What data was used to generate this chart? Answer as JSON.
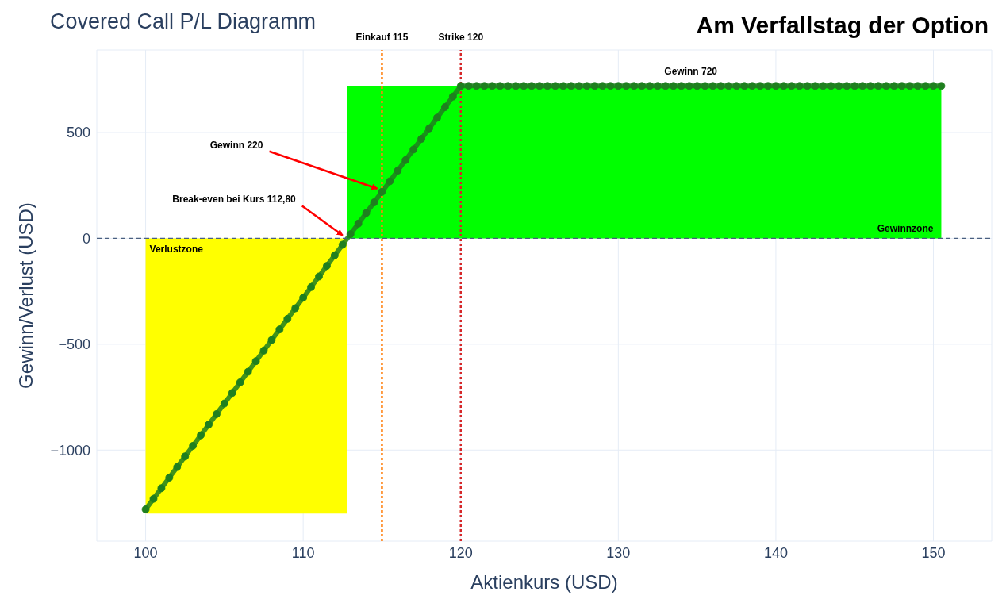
{
  "chart_data": {
    "type": "line",
    "title": "Covered Call P/L Diagramm",
    "subtitle": "Am Verfallstag der Option",
    "xlabel": "Aktienkurs (USD)",
    "ylabel": "Gewinn/Verlust (USD)",
    "series": [
      {
        "type": "area",
        "color": "#ffff00",
        "x": [
          100,
          112.8
        ],
        "values": [
          -1300,
          -1300
        ]
      },
      {
        "type": "area",
        "color": "#00ff00",
        "x": [
          112.8,
          150.5
        ],
        "values": [
          720,
          720
        ]
      },
      {
        "color": "#1f7f1f",
        "marker": "circle",
        "x": [
          100,
          100.5,
          101,
          101.5,
          102,
          102.5,
          103,
          103.5,
          104,
          104.5,
          105,
          105.5,
          106,
          106.5,
          107,
          107.5,
          108,
          108.5,
          109,
          109.5,
          110,
          110.5,
          111,
          111.5,
          112,
          112.5,
          113,
          113.5,
          114,
          114.5,
          115,
          115.5,
          116,
          116.5,
          117,
          117.5,
          118,
          118.5,
          119,
          119.5,
          120,
          120.5,
          121,
          121.5,
          122,
          122.5,
          123,
          123.5,
          124,
          124.5,
          125,
          125.5,
          126,
          126.5,
          127,
          127.5,
          128,
          128.5,
          129,
          129.5,
          130,
          130.5,
          131,
          131.5,
          132,
          132.5,
          133,
          133.5,
          134,
          134.5,
          135,
          135.5,
          136,
          136.5,
          137,
          137.5,
          138,
          138.5,
          139,
          139.5,
          140,
          140.5,
          141,
          141.5,
          142,
          142.5,
          143,
          143.5,
          144,
          144.5,
          145,
          145.5,
          146,
          146.5,
          147,
          147.5,
          148,
          148.5,
          149,
          149.5,
          150,
          150.5
        ],
        "values": [
          -1280,
          -1230,
          -1180,
          -1130,
          -1080,
          -1030,
          -980,
          -930,
          -880,
          -830,
          -780,
          -730,
          -680,
          -630,
          -580,
          -530,
          -480,
          -430,
          -380,
          -330,
          -280,
          -230,
          -180,
          -130,
          -80,
          -30,
          20,
          70,
          120,
          170,
          220,
          270,
          320,
          370,
          420,
          470,
          520,
          570,
          620,
          670,
          720,
          720,
          720,
          720,
          720,
          720,
          720,
          720,
          720,
          720,
          720,
          720,
          720,
          720,
          720,
          720,
          720,
          720,
          720,
          720,
          720,
          720,
          720,
          720,
          720,
          720,
          720,
          720,
          720,
          720,
          720,
          720,
          720,
          720,
          720,
          720,
          720,
          720,
          720,
          720,
          720,
          720,
          720,
          720,
          720,
          720,
          720,
          720,
          720,
          720,
          720,
          720,
          720,
          720,
          720,
          720,
          720,
          720,
          720,
          720,
          720,
          720
        ]
      }
    ],
    "xlim": [
      96.9,
      153.7
    ],
    "ylim": [
      -1430,
      890
    ],
    "xticks": [
      100,
      110,
      120,
      130,
      140,
      150
    ],
    "yticks": [
      {
        "value": -1000,
        "label": "−1000"
      },
      {
        "value": -500,
        "label": "−500"
      },
      0,
      500
    ],
    "grid": true,
    "legend": false,
    "ref_lines": [
      {
        "axis": "x",
        "value": 115,
        "label": "Einkauf 115",
        "color": "#ff7f0e",
        "line_style": "dotted"
      },
      {
        "axis": "x",
        "value": 120,
        "label": "Strike 120",
        "color": "#d62728",
        "line_style": "dotted"
      },
      {
        "axis": "y",
        "value": 0,
        "color": "#4a5f80",
        "line_style": "dashed"
      }
    ],
    "annotations": [
      {
        "text": "Gewinn 720",
        "x": 134.6,
        "y": 720
      },
      {
        "text": "Gewinn 220",
        "x": 115,
        "y": 220
      },
      {
        "text": "Break-even bei Kurs 112,80",
        "x": 112.8,
        "y": 0
      },
      {
        "text": "Verlustzone",
        "x": 100,
        "y": 0
      },
      {
        "text": "Gewinnzone",
        "x": 150.5,
        "y": 0
      }
    ]
  }
}
